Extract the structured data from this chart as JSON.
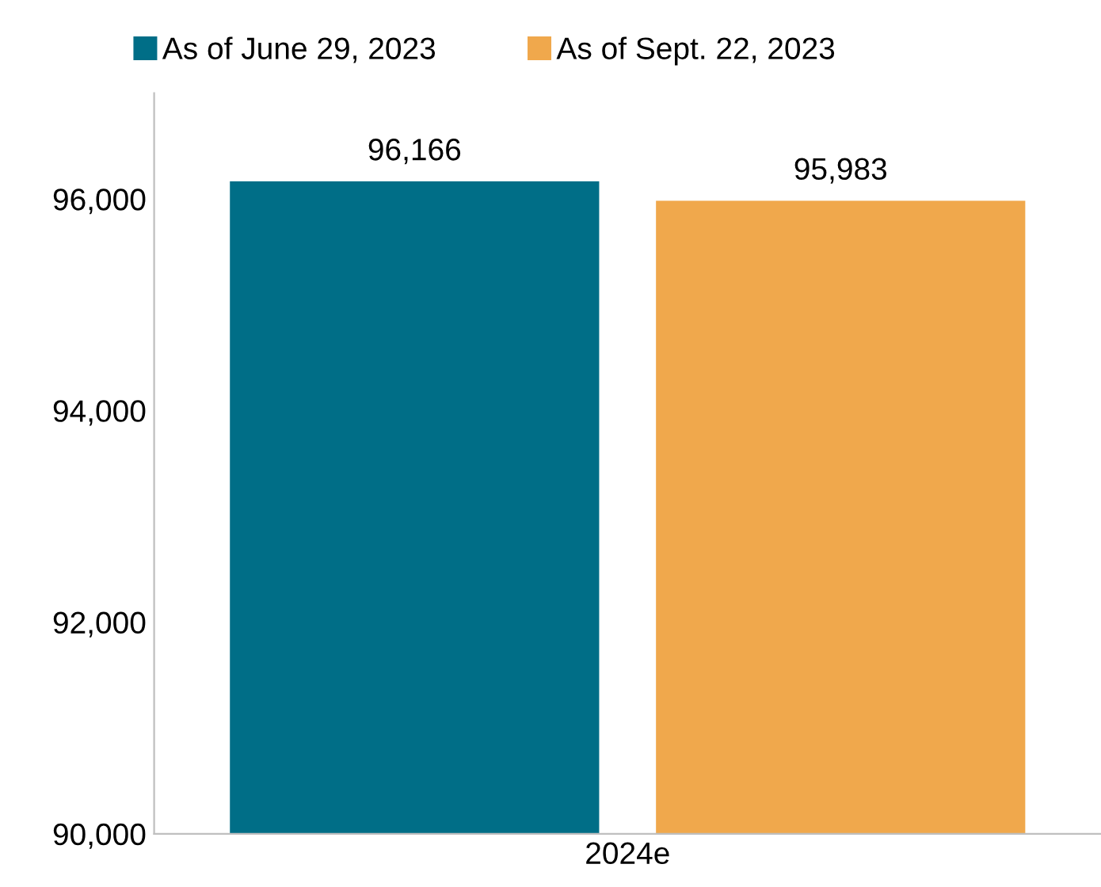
{
  "chart_data": {
    "type": "bar",
    "categories": [
      "2024e"
    ],
    "series": [
      {
        "name": "As of June 29, 2023",
        "color": "#006e87",
        "values": [
          96166
        ],
        "value_labels": [
          "96,166"
        ]
      },
      {
        "name": "As of Sept. 22, 2023",
        "color": "#f0a84c",
        "values": [
          95983
        ],
        "value_labels": [
          "95,983"
        ]
      }
    ],
    "ylim": [
      90000,
      97000
    ],
    "yticks": [
      {
        "value": 90000,
        "label": "90,000"
      },
      {
        "value": 92000,
        "label": "92,000"
      },
      {
        "value": 94000,
        "label": "94,000"
      },
      {
        "value": 96000,
        "label": "96,000"
      }
    ],
    "grid": false,
    "legend": "top left"
  }
}
